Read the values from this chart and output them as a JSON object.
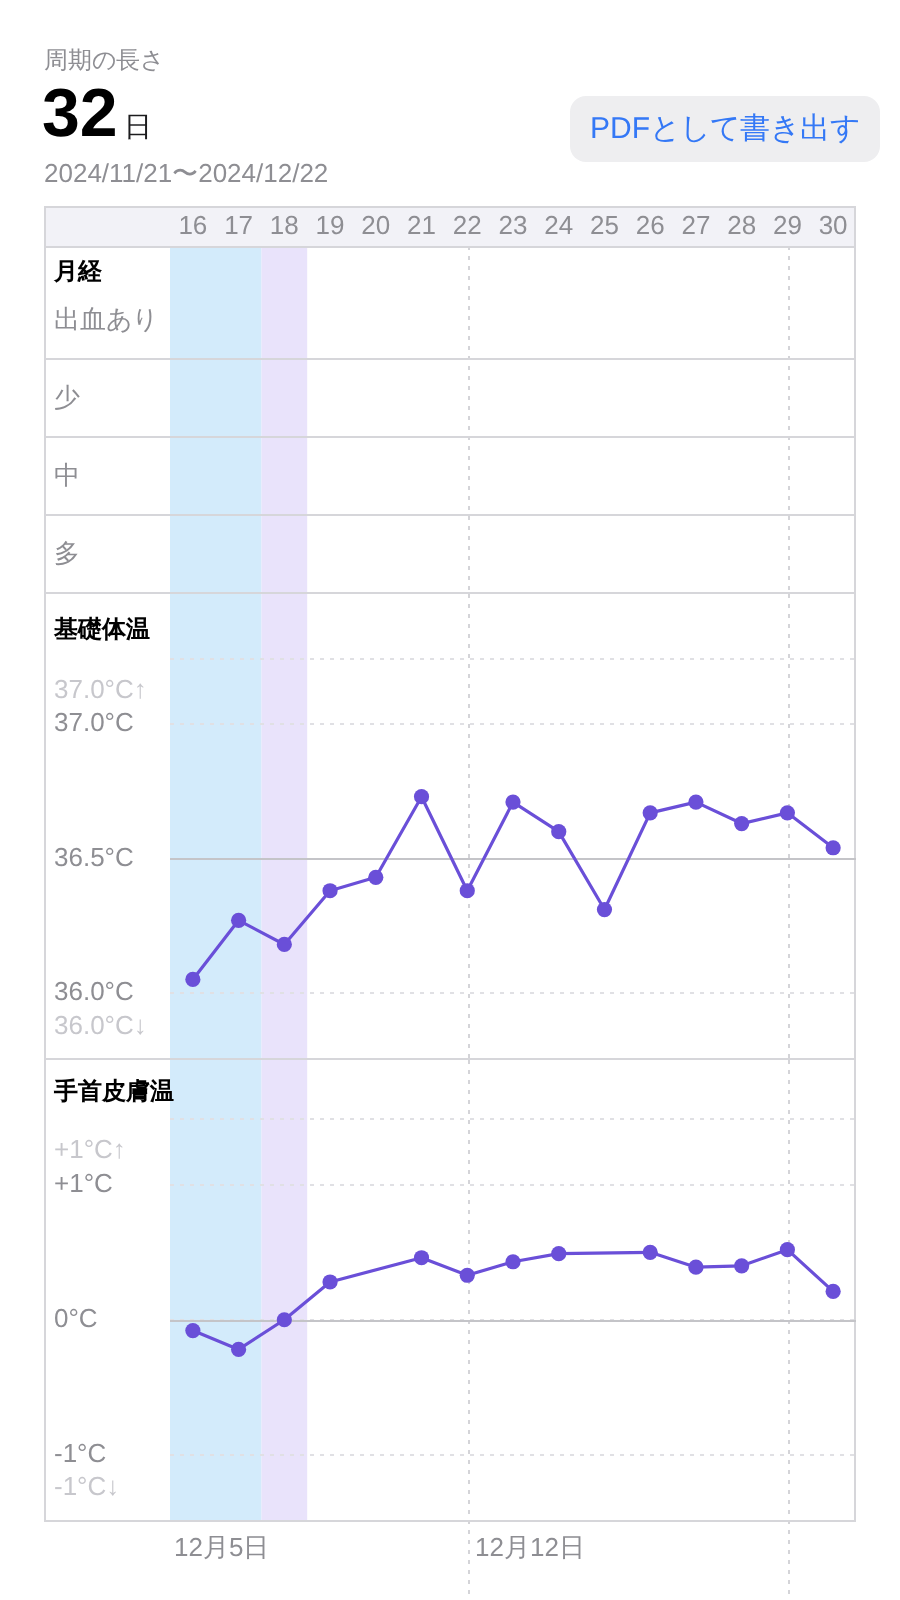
{
  "chart_data": [
    {
      "type": "other",
      "title": "周期の長さ",
      "subtitle": "2024/11/21〜2024/12/22",
      "annotations": [
        "32",
        "日",
        "PDFとして書き出す"
      ]
    },
    {
      "type": "heatmap",
      "title": "月経",
      "categories": [
        "16",
        "17",
        "18",
        "19",
        "20",
        "21",
        "22",
        "23",
        "24",
        "25",
        "26",
        "27",
        "28",
        "29",
        "30"
      ],
      "y_categories": [
        "出血あり",
        "少",
        "中",
        "多"
      ],
      "cells": [
        [
          null,
          null,
          null,
          null,
          null,
          null,
          null,
          null,
          null,
          null,
          null,
          null,
          null,
          null,
          null
        ],
        [
          null,
          null,
          null,
          null,
          null,
          null,
          null,
          null,
          null,
          null,
          null,
          null,
          null,
          null,
          null
        ],
        [
          null,
          null,
          null,
          null,
          null,
          null,
          null,
          null,
          null,
          null,
          null,
          null,
          null,
          null,
          null
        ],
        [
          null,
          null,
          null,
          null,
          null,
          null,
          null,
          null,
          null,
          null,
          null,
          null,
          null,
          null,
          null
        ]
      ],
      "bands": [
        {
          "axis": "x",
          "from": "16",
          "to": "17",
          "color": "#d3ebfb"
        },
        {
          "axis": "x",
          "from": "18",
          "to": "18",
          "color": "#e9e3fb"
        }
      ],
      "ref_lines": [
        {
          "axis": "x",
          "value": "22",
          "color": "#d4d4d8",
          "line_style": "dotted"
        },
        {
          "axis": "x",
          "value": "29",
          "color": "#d4d4d8",
          "line_style": "dotted"
        }
      ]
    },
    {
      "type": "line",
      "title": "基礎体温",
      "categories": [
        "16",
        "17",
        "18",
        "19",
        "20",
        "21",
        "22",
        "23",
        "24",
        "25",
        "26",
        "27",
        "28",
        "29",
        "30"
      ],
      "series": [
        {
          "color": "#6a4fd8",
          "values": [
            36.05,
            36.27,
            36.18,
            36.38,
            36.43,
            36.73,
            36.38,
            36.71,
            36.6,
            36.31,
            36.67,
            36.71,
            36.63,
            36.67,
            36.54
          ]
        }
      ],
      "ylim": [
        35.75,
        37.25
      ],
      "yticks": [
        {
          "value": 36,
          "label": "36.0°C"
        },
        {
          "value": 36.5,
          "label": "36.5°C"
        },
        {
          "value": 37,
          "label": "37.0°C"
        }
      ],
      "tick_labels": "y",
      "grid": "y",
      "marker": "circle",
      "ref_lines": [
        {
          "axis": "y",
          "value": 36.5,
          "color": "#c4c4c8"
        },
        {
          "axis": "x",
          "value": "22",
          "color": "#d4d4d8",
          "line_style": "dotted"
        },
        {
          "axis": "x",
          "value": "29",
          "color": "#d4d4d8",
          "line_style": "dotted"
        }
      ],
      "bands": [
        {
          "axis": "x",
          "from": "16",
          "to": "17",
          "color": "#d3ebfb"
        },
        {
          "axis": "x",
          "from": "18",
          "to": "18",
          "color": "#e9e3fb"
        }
      ],
      "annotations": [
        "37.0°C↑",
        "36.0°C↓"
      ]
    },
    {
      "type": "line",
      "title": "手首皮膚温",
      "categories": [
        "16",
        "17",
        "18",
        "19",
        "20",
        "21",
        "22",
        "23",
        "24",
        "25",
        "26",
        "27",
        "28",
        "29",
        "30"
      ],
      "series": [
        {
          "color": "#6a4fd8",
          "x": [
            "16",
            "17",
            "18",
            "19",
            "21",
            "22",
            "23",
            "24",
            "26",
            "27",
            "28",
            "29",
            "30"
          ],
          "values": [
            -0.08,
            -0.22,
            0,
            0.28,
            0.46,
            0.33,
            0.43,
            0.49,
            0.5,
            0.39,
            0.4,
            0.52,
            0.21
          ]
        }
      ],
      "ylim": [
        -1.5,
        1.5
      ],
      "yticks": [
        {
          "value": -1,
          "label": "-1°C"
        },
        {
          "value": 0,
          "label": "0°C"
        },
        {
          "value": 1,
          "label": "+1°C"
        }
      ],
      "tick_labels": "y",
      "grid": "y",
      "marker": "circle",
      "ref_lines": [
        {
          "axis": "y",
          "value": 0,
          "color": "#c4c4c8"
        },
        {
          "axis": "x",
          "value": "22",
          "label": "12月12日",
          "color": "#d4d4d8",
          "line_style": "dotted"
        },
        {
          "axis": "x",
          "value": "29",
          "color": "#d4d4d8",
          "line_style": "dotted"
        }
      ],
      "bands": [
        {
          "axis": "x",
          "from": "16",
          "to": "17",
          "color": "#d3ebfb"
        },
        {
          "axis": "x",
          "from": "18",
          "to": "18",
          "color": "#e9e3fb"
        }
      ],
      "annotations": [
        "+1°C↑",
        "-1°C↓",
        "12月5日"
      ]
    }
  ]
}
